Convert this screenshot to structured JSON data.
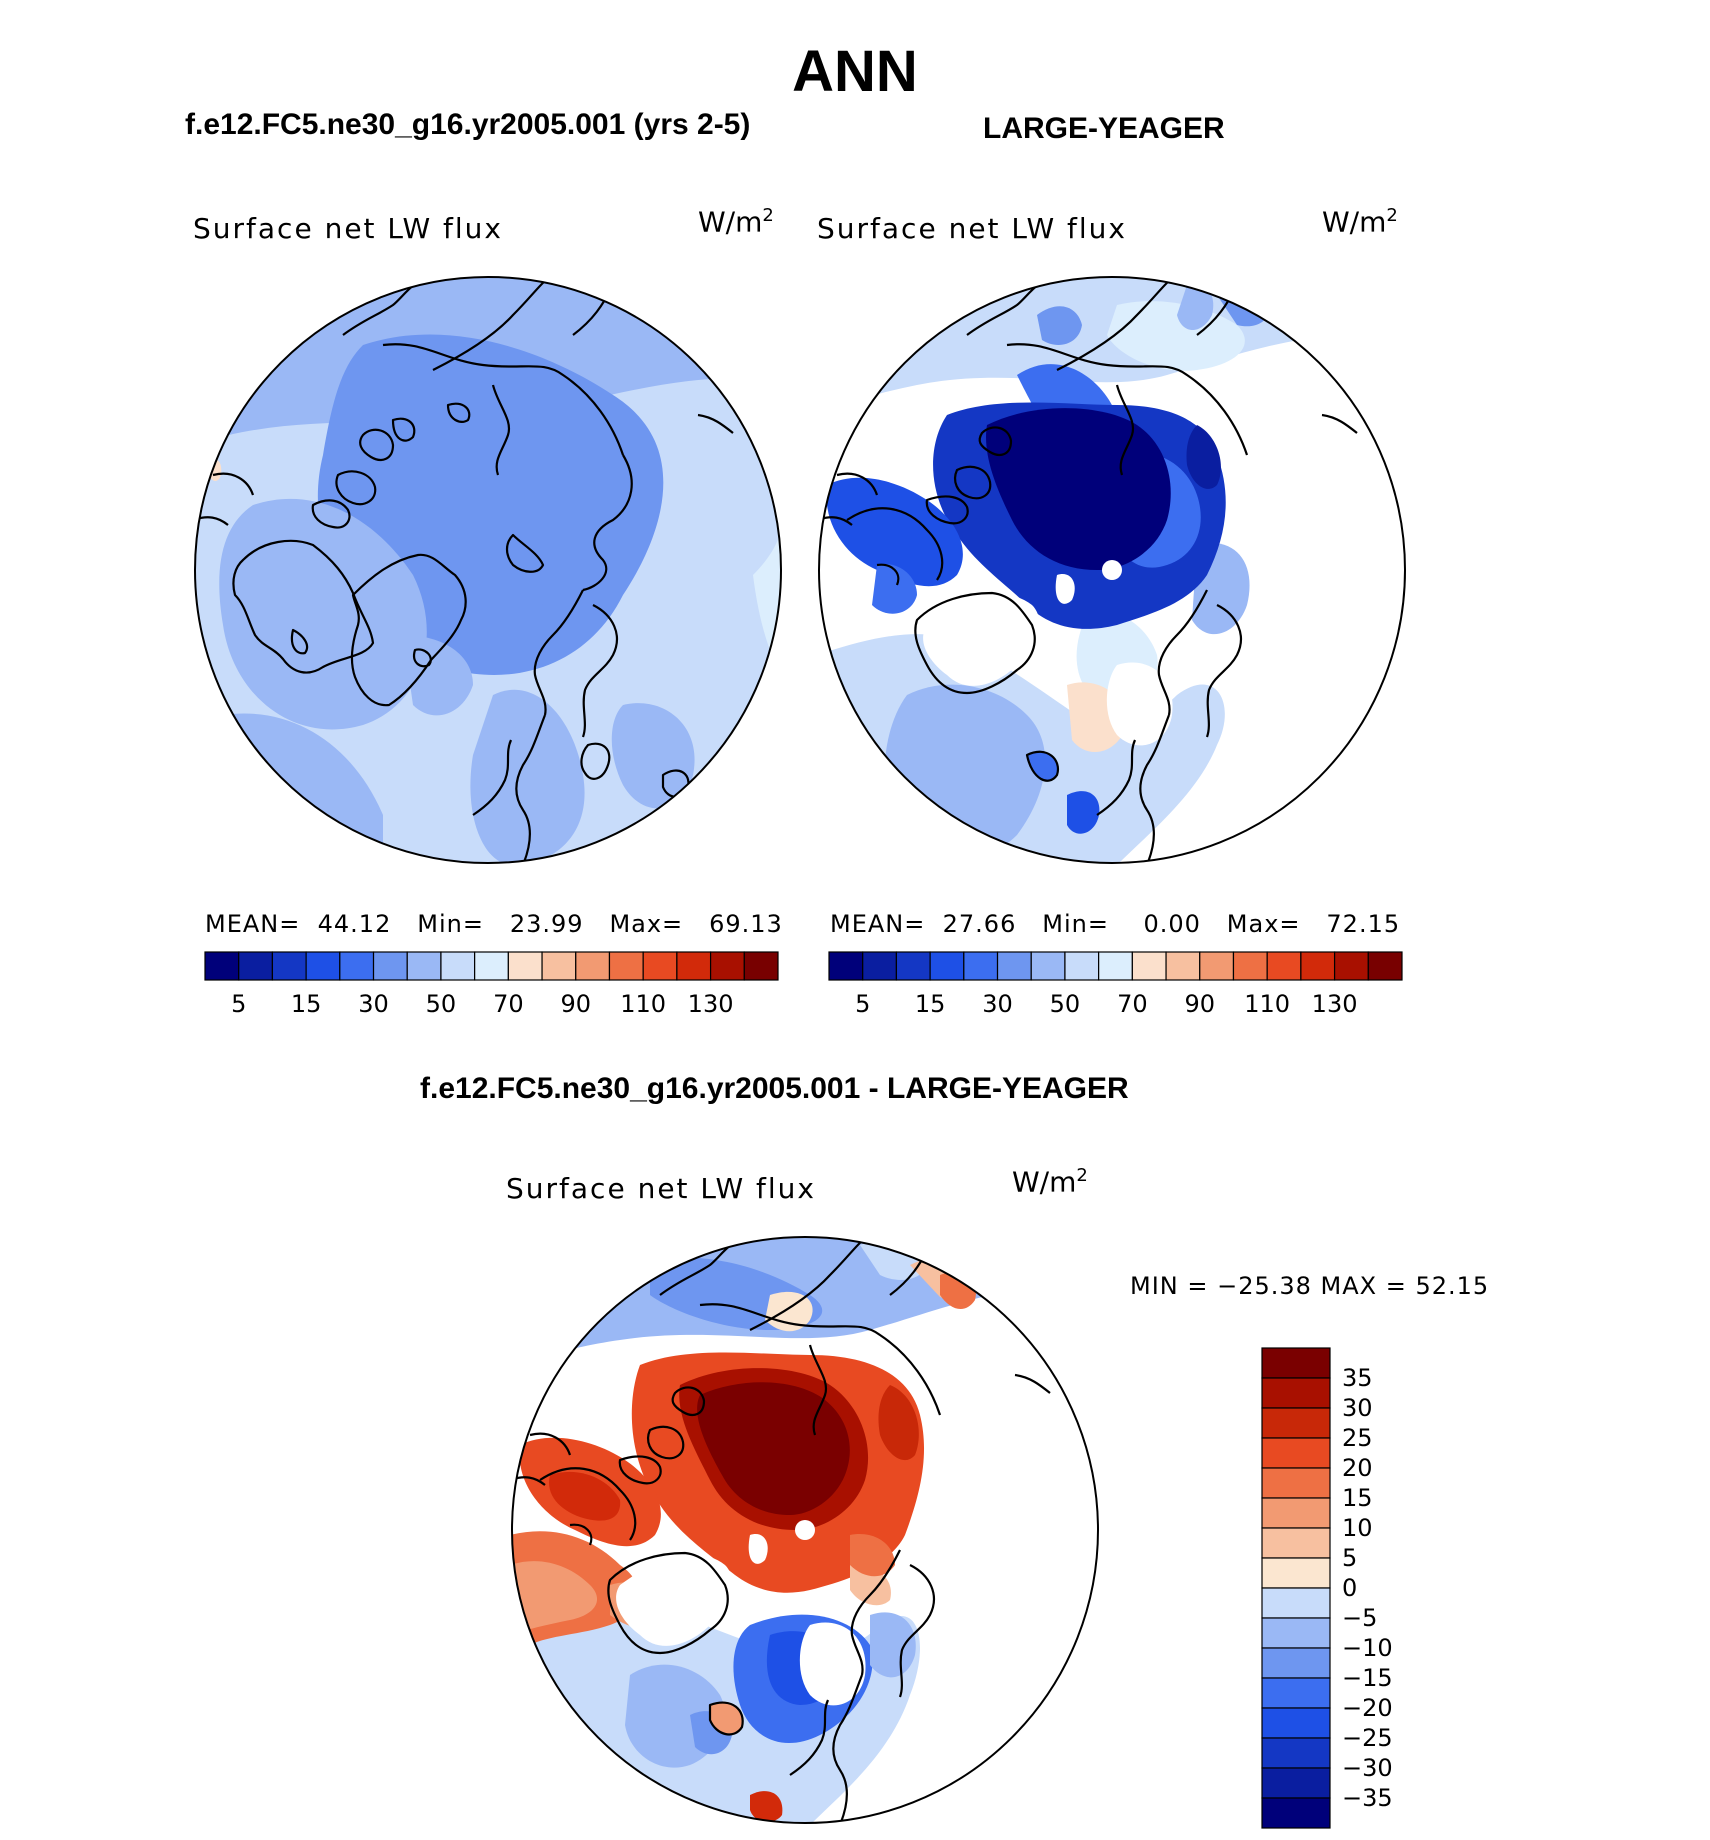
{
  "title": "ANN",
  "colors": {
    "abs_palette": [
      "#00007a",
      "#0a1ea0",
      "#1437c4",
      "#1e50e6",
      "#3c6ef0",
      "#6e96f0",
      "#9ab8f5",
      "#c8dcfa",
      "#dceefd",
      "#fbe0cc",
      "#f7c0a0",
      "#f29a72",
      "#ee7044",
      "#e84a22",
      "#d22a0a",
      "#a81000",
      "#780000"
    ],
    "diff_palette": [
      "#00007a",
      "#0a1ea0",
      "#1437c4",
      "#1e50e6",
      "#3c6ef0",
      "#6e96f0",
      "#9ab8f5",
      "#c8dcfa",
      "#fbe6d0",
      "#f7c0a0",
      "#f29a72",
      "#ee7044",
      "#e84a22",
      "#c82808",
      "#a81000",
      "#7a0000"
    ],
    "coast": "#000000",
    "land": "#ffffff"
  },
  "panels": [
    {
      "run_title": "f.e12.FC5.ne30_g16.yr2005.001 (yrs 2-5)",
      "variable": "Surface net LW flux",
      "units": "W/m",
      "units_sup": "2",
      "stats": {
        "mean_label": "MEAN=",
        "mean": "44.12",
        "min_label": "Min=",
        "min": "23.99",
        "max_label": "Max=",
        "max": "69.13"
      },
      "colorbar_ticks": [
        "5",
        "15",
        "30",
        "50",
        "70",
        "90",
        "110",
        "130"
      ]
    },
    {
      "run_title": "LARGE-YEAGER",
      "variable": "Surface net LW flux",
      "units": "W/m",
      "units_sup": "2",
      "stats": {
        "mean_label": "MEAN=",
        "mean": "27.66",
        "min_label": "Min=",
        "min": "0.00",
        "max_label": "Max=",
        "max": "72.15"
      },
      "colorbar_ticks": [
        "5",
        "15",
        "30",
        "50",
        "70",
        "90",
        "110",
        "130"
      ]
    }
  ],
  "diff_panel": {
    "run_title": "f.e12.FC5.ne30_g16.yr2005.001 - LARGE-YEAGER",
    "variable": "Surface net LW flux",
    "units": "W/m",
    "units_sup": "2",
    "stats": "MIN = −25.38 MAX =   52.15",
    "colorbar_ticks": [
      "35",
      "30",
      "25",
      "20",
      "15",
      "10",
      "5",
      "0",
      "−5",
      "−10",
      "−15",
      "−20",
      "−25",
      "−30",
      "−35"
    ]
  }
}
